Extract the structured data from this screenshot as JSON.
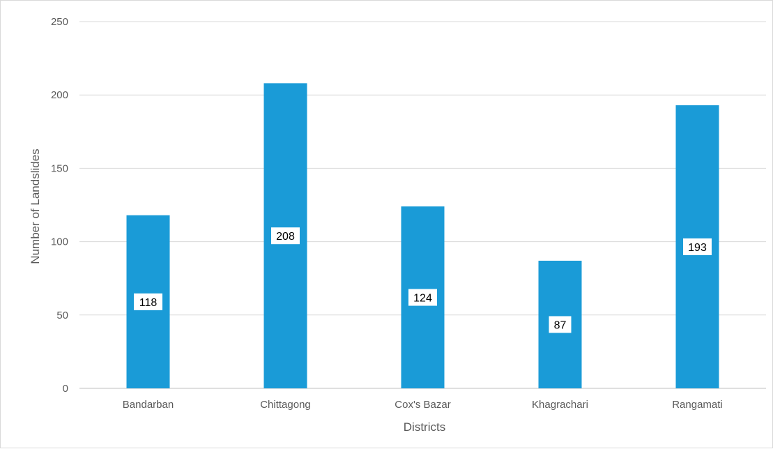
{
  "chart_data": {
    "type": "bar",
    "title": "",
    "xlabel": "Districts",
    "ylabel": "Number of Landslides",
    "categories": [
      "Bandarban",
      "Chittagong",
      "Cox's Bazar",
      "Khagrachari",
      "Rangamati"
    ],
    "series": [
      {
        "values": [
          118,
          208,
          124,
          87,
          193
        ],
        "color": "#1a9bd7"
      }
    ],
    "ylim": [
      0,
      250
    ],
    "yticks": [
      0,
      50,
      100,
      150,
      200,
      250
    ],
    "grid": true,
    "legend": "none",
    "data_labels": true
  }
}
